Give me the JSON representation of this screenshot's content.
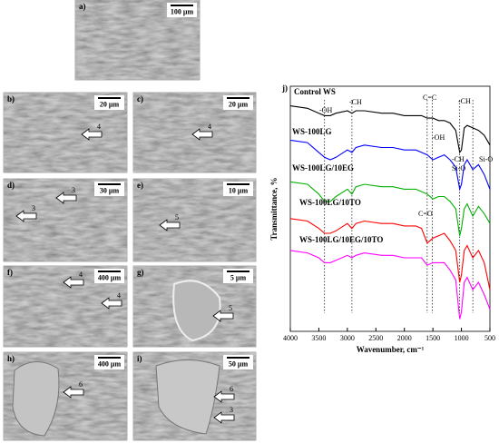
{
  "panels": [
    {
      "label": "a)",
      "scale": "100 µm",
      "arrows": []
    },
    {
      "label": "b)",
      "scale": "20 µm",
      "arrows": [
        "4"
      ]
    },
    {
      "label": "c)",
      "scale": "20 µm",
      "arrows": [
        "4"
      ]
    },
    {
      "label": "d)",
      "scale": "30 µm",
      "arrows": [
        "3",
        "3"
      ]
    },
    {
      "label": "e)",
      "scale": "10 µm",
      "arrows": [
        "5"
      ]
    },
    {
      "label": "f)",
      "scale": "400 µm",
      "arrows": [
        "4",
        "4"
      ]
    },
    {
      "label": "g)",
      "scale": "5 µm",
      "arrows": [
        "5"
      ]
    },
    {
      "label": "h)",
      "scale": "400 µm",
      "arrows": [
        "6"
      ]
    },
    {
      "label": "i)",
      "scale": "50 µm",
      "arrows": [
        "6",
        "3"
      ]
    }
  ],
  "chart_data": {
    "type": "line",
    "panel_label": "j)",
    "x_label": "Wavenumber, cm⁻¹",
    "y_label": "Transmittance, %",
    "x": [
      4000,
      3700,
      3500,
      3400,
      3300,
      3200,
      3000,
      2920,
      2850,
      2700,
      2400,
      2200,
      2000,
      1800,
      1700,
      1600,
      1500,
      1400,
      1300,
      1200,
      1100,
      1030,
      1000,
      950,
      900,
      800,
      700,
      600,
      500
    ],
    "xlim": [
      4000,
      500
    ],
    "xticks": [
      4000,
      3500,
      3000,
      2500,
      2000,
      1500,
      1000,
      500
    ],
    "ylim": [
      0,
      100
    ],
    "series": [
      {
        "name": "Control WS",
        "color": "#000000",
        "values": [
          92,
          91,
          89,
          88,
          88,
          89,
          90,
          89,
          90,
          90,
          89,
          89,
          88,
          88,
          88,
          87,
          87,
          86,
          86,
          85,
          82,
          73,
          74,
          83,
          84,
          83,
          82,
          80,
          76
        ]
      },
      {
        "name": "WS-100LG",
        "color": "#0000ff",
        "values": [
          78,
          77,
          73,
          71,
          70,
          71,
          74,
          73,
          75,
          76,
          75,
          75,
          74,
          74,
          73,
          72,
          70,
          71,
          72,
          70,
          67,
          58,
          60,
          68,
          70,
          66,
          68,
          64,
          58
        ]
      },
      {
        "name": "WS-100LG/10EG",
        "color": "#00b000",
        "values": [
          61,
          60,
          56,
          53,
          53,
          55,
          58,
          56,
          59,
          60,
          59,
          59,
          58,
          58,
          57,
          56,
          54,
          55,
          55,
          53,
          50,
          39,
          42,
          50,
          52,
          47,
          51,
          48,
          44
        ]
      },
      {
        "name": "WS-100LG/10TO",
        "color": "#ff0000",
        "values": [
          46,
          45,
          42,
          40,
          40,
          41,
          44,
          42,
          44,
          45,
          44,
          44,
          43,
          43,
          42,
          36,
          38,
          39,
          40,
          37,
          33,
          20,
          23,
          33,
          35,
          30,
          33,
          28,
          17
        ]
      },
      {
        "name": "WS-100LG/10EG/10TO",
        "color": "#ff00ff",
        "values": [
          33,
          32,
          30,
          28,
          28,
          29,
          31,
          30,
          31,
          32,
          31,
          31,
          30,
          30,
          30,
          27,
          28,
          28,
          28,
          25,
          21,
          5,
          8,
          20,
          22,
          17,
          20,
          15,
          9
        ]
      }
    ],
    "vlines": [
      3400,
      2920,
      1600,
      1510,
      1030,
      800
    ],
    "annotations": [
      "-OH",
      "-CH",
      "C=C",
      "-CH",
      "-OH",
      "-CH",
      "Si-O",
      "Si-O",
      "C=O"
    ]
  }
}
